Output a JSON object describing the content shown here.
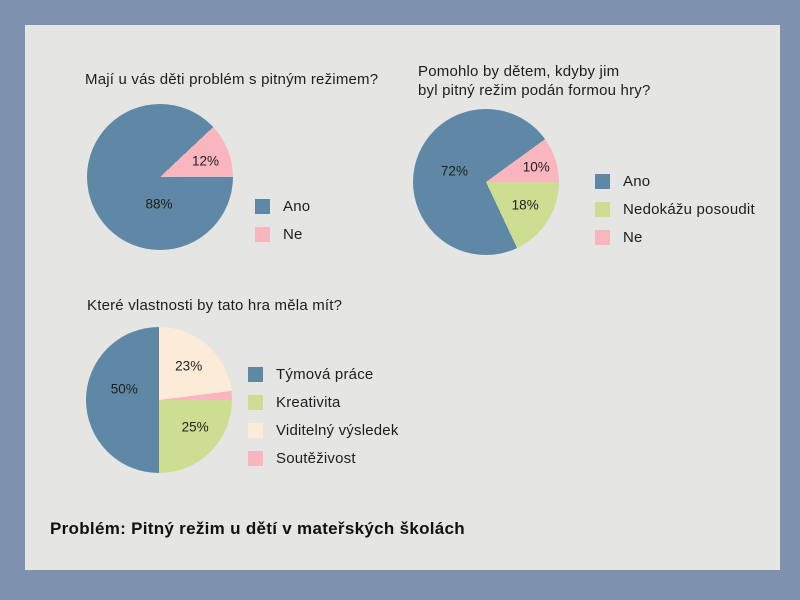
{
  "page": {
    "frame_color": "#7e91ae",
    "panel_color": "#e5e6e3",
    "footer": "Problém: Pitný režim u dětí v mateřských školách"
  },
  "colors": {
    "blue": "#5e88a5",
    "green": "#cddd92",
    "cream": "#fcecd7",
    "pink": "#fab6be"
  },
  "chart_data": [
    {
      "type": "pie",
      "title": "Mají u vás děti problém s pitným režimem?",
      "title_lines": [
        "Mají u vás děti problém s pitným režimem?"
      ],
      "start_angle_deg": 46.8,
      "legend_position": "right",
      "segments": [
        {
          "label": "Ne",
          "value": 12,
          "pct_label": "12%",
          "color": "#fab6be",
          "label_angle_deg": 71,
          "label_f": 0.66
        },
        {
          "label": "Ano",
          "value": 88,
          "pct_label": "88%",
          "color": "#5e88a5",
          "label_angle_deg": 182,
          "label_f": 0.37
        }
      ],
      "legend": [
        {
          "label": "Ano",
          "color": "#5e88a5"
        },
        {
          "label": "Ne",
          "color": "#fab6be"
        }
      ]
    },
    {
      "type": "pie",
      "title": "Pomohlo by dětem, kdyby jim byl pitný režim podán formou hry?",
      "title_lines": [
        "Pomohlo by dětem, kdyby jim",
        "byl pitný režim podán formou hry?"
      ],
      "start_angle_deg": 54,
      "legend_position": "right",
      "segments": [
        {
          "label": "Ne",
          "value": 10,
          "pct_label": "10%",
          "color": "#fab6be",
          "label_angle_deg": 73,
          "label_f": 0.72
        },
        {
          "label": "Nedokážu posoudit",
          "value": 18,
          "pct_label": "18%",
          "color": "#cddd92",
          "label_angle_deg": 120,
          "label_f": 0.62
        },
        {
          "label": "Ano",
          "value": 72,
          "pct_label": "72%",
          "color": "#5e88a5",
          "label_angle_deg": 290,
          "label_f": 0.46
        }
      ],
      "legend": [
        {
          "label": "Ano",
          "color": "#5e88a5"
        },
        {
          "label": "Nedokážu posoudit",
          "color": "#cddd92"
        },
        {
          "label": "Ne",
          "color": "#fab6be"
        }
      ]
    },
    {
      "type": "pie",
      "title": "Které vlastnosti by tato hra měla mít?",
      "title_lines": [
        "Které vlastnosti by tato hra měla mít?"
      ],
      "start_angle_deg": 0,
      "legend_position": "right",
      "segments": [
        {
          "label": "Viditelný výsledek",
          "value": 23,
          "pct_label": "23%",
          "color": "#fcecd7",
          "label_angle_deg": 41,
          "label_f": 0.62
        },
        {
          "label": "Soutěživost",
          "value": 2,
          "pct_label": null,
          "color": "#fab6be",
          "label_angle_deg": null,
          "label_f": null
        },
        {
          "label": "Kreativita",
          "value": 25,
          "pct_label": "25%",
          "color": "#cddd92",
          "label_angle_deg": 127,
          "label_f": 0.62
        },
        {
          "label": "Týmová práce",
          "value": 50,
          "pct_label": "50%",
          "color": "#5e88a5",
          "label_angle_deg": 288,
          "label_f": 0.5
        }
      ],
      "legend": [
        {
          "label": "Týmová práce",
          "color": "#5e88a5"
        },
        {
          "label": "Kreativita",
          "color": "#cddd92"
        },
        {
          "label": "Viditelný výsledek",
          "color": "#fcecd7"
        },
        {
          "label": "Soutěživost",
          "color": "#fab6be"
        }
      ]
    }
  ]
}
